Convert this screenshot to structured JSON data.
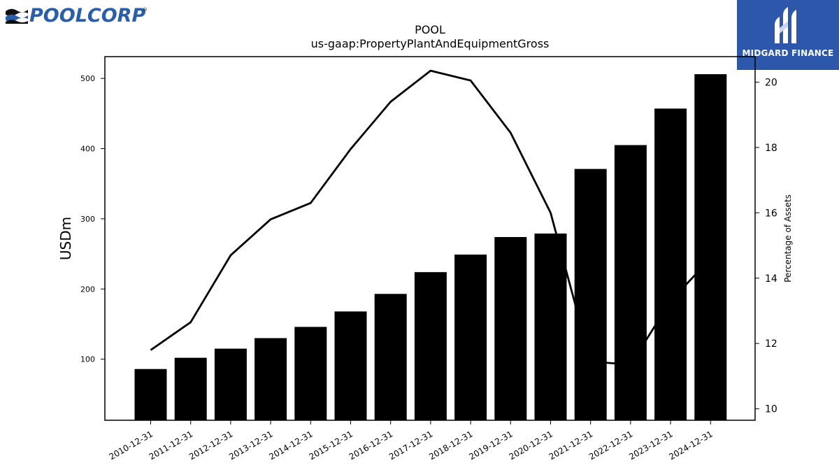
{
  "branding": {
    "left_logo_text": "POOLCORP",
    "left_logo_mark": "®",
    "right_logo_text": "MIDGARD FINANCE",
    "colors": {
      "poolcorp_blue": "#2a5ea8",
      "midgard_blue": "#2d57ab"
    }
  },
  "chart_data": {
    "type": "bar",
    "title": "POOL",
    "subtitle": "us-gaap:PropertyPlantAndEquipmentGross",
    "ylabel": "USDm",
    "y2label": "Percentage of Assets",
    "categories": [
      "2010-12-31",
      "2011-12-31",
      "2012-12-31",
      "2013-12-31",
      "2014-12-31",
      "2015-12-31",
      "2016-12-31",
      "2017-12-31",
      "2018-12-31",
      "2019-12-31",
      "2020-12-31",
      "2021-12-31",
      "2022-12-31",
      "2023-12-31",
      "2024-12-31"
    ],
    "ylim": [
      13,
      531
    ],
    "y2lim": [
      9.65,
      20.78
    ],
    "yticks": [
      100,
      200,
      300,
      400,
      500
    ],
    "y2ticks": [
      10,
      12,
      14,
      16,
      18,
      20
    ],
    "bar_color": "#000000",
    "line_color": "#000000",
    "series": [
      {
        "type": "bar",
        "axis": "left",
        "values": [
          86,
          102,
          115,
          130,
          146,
          168,
          193,
          224,
          249,
          274,
          279,
          371,
          405,
          457,
          506
        ]
      },
      {
        "type": "line",
        "axis": "right",
        "values": [
          11.8,
          12.65,
          14.7,
          15.8,
          16.3,
          17.95,
          19.4,
          20.35,
          20.05,
          18.45,
          16.0,
          11.45,
          11.35,
          13.3,
          14.6
        ]
      }
    ]
  }
}
